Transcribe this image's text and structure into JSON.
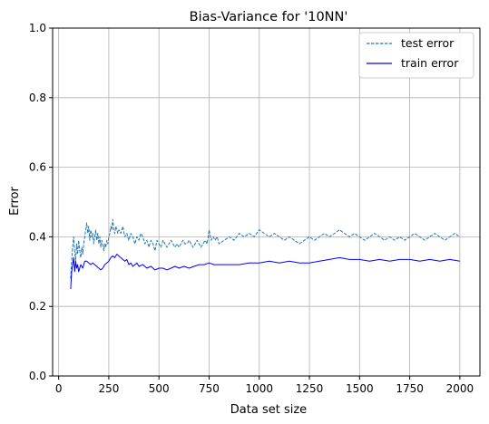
{
  "chart_data": {
    "type": "line",
    "title": "Bias-Variance for '10NN'",
    "xlabel": "Data set size",
    "ylabel": "Error",
    "xlim": [
      -30,
      2100
    ],
    "ylim": [
      0.0,
      1.0
    ],
    "xticks": [
      0,
      250,
      500,
      750,
      1000,
      1250,
      1500,
      1750,
      2000
    ],
    "yticks": [
      0.0,
      0.2,
      0.4,
      0.6,
      0.8,
      1.0
    ],
    "xtick_labels": [
      "0",
      "250",
      "500",
      "750",
      "1000",
      "1250",
      "1500",
      "1750",
      "2000"
    ],
    "ytick_labels": [
      "0.0",
      "0.2",
      "0.4",
      "0.6",
      "0.8",
      "1.0"
    ],
    "grid": true,
    "legend_position": "top-right",
    "series": [
      {
        "name": "test error",
        "color": "#1f77b4",
        "style": "dashed",
        "x": [
          60,
          65,
          70,
          75,
          80,
          85,
          90,
          95,
          100,
          105,
          110,
          115,
          120,
          125,
          130,
          135,
          140,
          145,
          150,
          155,
          160,
          165,
          170,
          175,
          180,
          185,
          190,
          195,
          200,
          205,
          210,
          215,
          220,
          225,
          230,
          235,
          240,
          245,
          250,
          255,
          260,
          265,
          270,
          275,
          280,
          285,
          290,
          295,
          300,
          310,
          320,
          330,
          340,
          350,
          360,
          370,
          380,
          390,
          400,
          410,
          420,
          430,
          440,
          450,
          460,
          470,
          480,
          490,
          500,
          510,
          520,
          530,
          540,
          550,
          560,
          570,
          580,
          590,
          600,
          610,
          620,
          630,
          640,
          650,
          660,
          670,
          680,
          690,
          700,
          710,
          720,
          730,
          740,
          750,
          760,
          770,
          780,
          790,
          800,
          825,
          850,
          875,
          900,
          925,
          950,
          975,
          1000,
          1025,
          1050,
          1075,
          1100,
          1125,
          1150,
          1175,
          1200,
          1225,
          1250,
          1275,
          1300,
          1325,
          1350,
          1375,
          1400,
          1425,
          1450,
          1475,
          1500,
          1525,
          1550,
          1575,
          1600,
          1625,
          1650,
          1675,
          1700,
          1725,
          1750,
          1775,
          1800,
          1825,
          1850,
          1875,
          1900,
          1925,
          1950,
          1975,
          2000
        ],
        "values": [
          0.28,
          0.33,
          0.37,
          0.4,
          0.36,
          0.33,
          0.38,
          0.35,
          0.39,
          0.36,
          0.34,
          0.37,
          0.35,
          0.38,
          0.4,
          0.42,
          0.44,
          0.41,
          0.43,
          0.39,
          0.42,
          0.4,
          0.41,
          0.38,
          0.4,
          0.42,
          0.39,
          0.41,
          0.38,
          0.4,
          0.37,
          0.39,
          0.38,
          0.36,
          0.38,
          0.37,
          0.39,
          0.38,
          0.4,
          0.41,
          0.43,
          0.42,
          0.45,
          0.42,
          0.41,
          0.43,
          0.42,
          0.41,
          0.42,
          0.41,
          0.43,
          0.4,
          0.41,
          0.39,
          0.41,
          0.4,
          0.38,
          0.4,
          0.39,
          0.41,
          0.4,
          0.38,
          0.39,
          0.37,
          0.39,
          0.38,
          0.36,
          0.39,
          0.38,
          0.37,
          0.39,
          0.38,
          0.37,
          0.38,
          0.39,
          0.38,
          0.37,
          0.38,
          0.37,
          0.38,
          0.39,
          0.38,
          0.38,
          0.39,
          0.38,
          0.37,
          0.38,
          0.39,
          0.38,
          0.37,
          0.38,
          0.39,
          0.38,
          0.42,
          0.39,
          0.4,
          0.39,
          0.4,
          0.38,
          0.39,
          0.4,
          0.39,
          0.41,
          0.4,
          0.41,
          0.4,
          0.42,
          0.41,
          0.4,
          0.41,
          0.4,
          0.39,
          0.4,
          0.39,
          0.38,
          0.39,
          0.4,
          0.39,
          0.4,
          0.41,
          0.4,
          0.41,
          0.42,
          0.41,
          0.4,
          0.41,
          0.4,
          0.39,
          0.4,
          0.41,
          0.4,
          0.39,
          0.4,
          0.39,
          0.4,
          0.39,
          0.4,
          0.41,
          0.4,
          0.39,
          0.4,
          0.41,
          0.4,
          0.39,
          0.4,
          0.41,
          0.4
        ]
      },
      {
        "name": "train error",
        "color": "#0000ff",
        "style": "solid",
        "x": [
          60,
          65,
          70,
          75,
          80,
          85,
          90,
          95,
          100,
          110,
          120,
          130,
          140,
          150,
          160,
          170,
          180,
          190,
          200,
          210,
          220,
          230,
          240,
          250,
          260,
          270,
          280,
          290,
          300,
          310,
          320,
          330,
          340,
          350,
          360,
          370,
          380,
          390,
          400,
          420,
          440,
          460,
          480,
          500,
          520,
          540,
          560,
          580,
          600,
          625,
          650,
          675,
          700,
          725,
          750,
          775,
          800,
          850,
          900,
          950,
          1000,
          1050,
          1100,
          1150,
          1200,
          1250,
          1300,
          1350,
          1400,
          1450,
          1500,
          1550,
          1600,
          1650,
          1700,
          1750,
          1800,
          1850,
          1900,
          1950,
          2000
        ],
        "values": [
          0.25,
          0.3,
          0.32,
          0.34,
          0.3,
          0.33,
          0.31,
          0.32,
          0.3,
          0.32,
          0.31,
          0.33,
          0.33,
          0.325,
          0.32,
          0.325,
          0.32,
          0.315,
          0.31,
          0.305,
          0.31,
          0.32,
          0.325,
          0.33,
          0.34,
          0.345,
          0.34,
          0.35,
          0.345,
          0.34,
          0.335,
          0.33,
          0.335,
          0.32,
          0.325,
          0.315,
          0.32,
          0.325,
          0.315,
          0.32,
          0.31,
          0.315,
          0.305,
          0.31,
          0.31,
          0.305,
          0.31,
          0.315,
          0.31,
          0.315,
          0.31,
          0.315,
          0.32,
          0.32,
          0.325,
          0.32,
          0.32,
          0.32,
          0.32,
          0.325,
          0.325,
          0.33,
          0.325,
          0.33,
          0.325,
          0.325,
          0.33,
          0.335,
          0.34,
          0.335,
          0.335,
          0.33,
          0.335,
          0.33,
          0.335,
          0.335,
          0.33,
          0.335,
          0.33,
          0.335,
          0.33
        ]
      }
    ]
  }
}
